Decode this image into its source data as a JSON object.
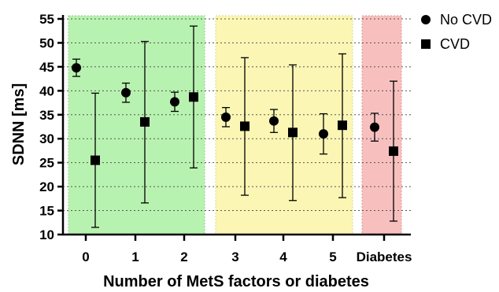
{
  "chart_data": {
    "type": "scatter",
    "xlabel": "Number of MetS factors or diabetes",
    "ylabel": "SDNN [ms]",
    "ylim": [
      10,
      55
    ],
    "yticks": [
      10,
      15,
      20,
      25,
      30,
      35,
      40,
      45,
      50,
      55
    ],
    "categories": [
      "0",
      "1",
      "2",
      "3",
      "4",
      "5",
      "Diabetes"
    ],
    "grid": "horizontal dotted",
    "legend_position": "top-right",
    "error_bars": true,
    "series": [
      {
        "name": "No CVD",
        "marker": "circle",
        "values": [
          44.8,
          39.6,
          37.7,
          34.5,
          33.7,
          31.0,
          32.4
        ],
        "error_low": [
          43.0,
          37.6,
          35.7,
          32.5,
          31.3,
          26.8,
          29.5
        ],
        "error_high": [
          46.6,
          41.6,
          39.7,
          36.5,
          36.1,
          35.2,
          35.3
        ]
      },
      {
        "name": "CVD",
        "marker": "square",
        "values": [
          25.5,
          33.5,
          38.7,
          32.6,
          31.3,
          32.8,
          27.4
        ],
        "error_low": [
          11.5,
          16.6,
          23.9,
          18.2,
          17.1,
          17.7,
          12.8
        ],
        "error_high": [
          39.5,
          50.3,
          53.5,
          46.9,
          45.4,
          47.7,
          42.0
        ]
      }
    ],
    "groups": [
      {
        "categories": [
          "0",
          "1",
          "2"
        ],
        "color": "#b8f2b0"
      },
      {
        "categories": [
          "3",
          "4",
          "5"
        ],
        "color": "#fbf6b4"
      },
      {
        "categories": [
          "Diabetes"
        ],
        "color": "#f7c0bf"
      }
    ]
  }
}
